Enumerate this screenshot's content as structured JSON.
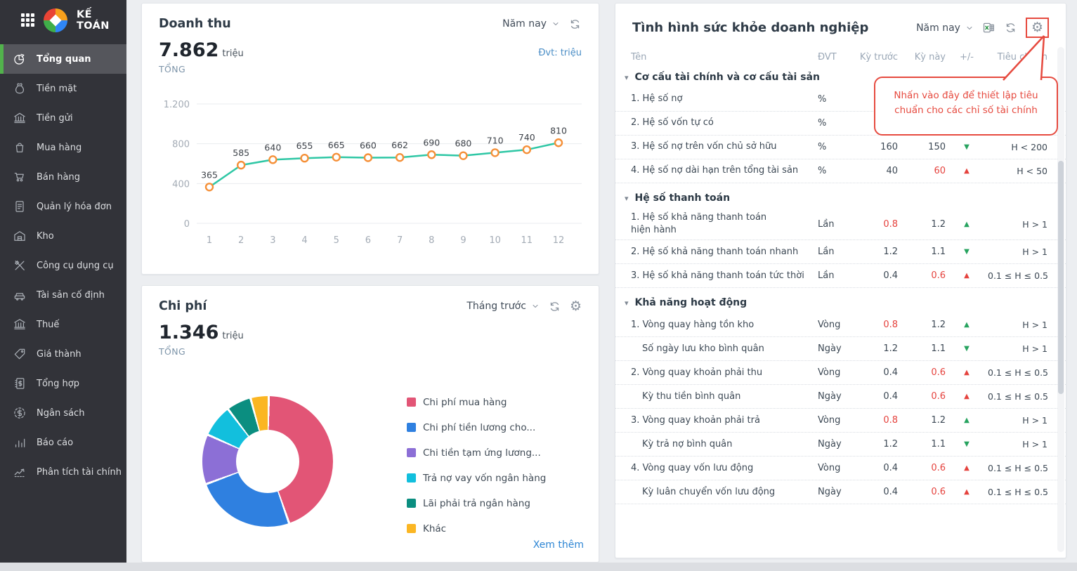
{
  "app": {
    "title": "KẾ TOÁN"
  },
  "colors": {
    "accent_green": "#52b24c",
    "line": "#2fc7a5",
    "marker": "#f59038",
    "negative": "#e5423d",
    "positive": "#27a35f",
    "annotation": "#e64a3f",
    "link": "#2e86d4"
  },
  "sidebar": {
    "items": [
      {
        "label": "Tổng quan",
        "icon": "overview-icon",
        "active": true
      },
      {
        "label": "Tiền mặt",
        "icon": "cash-icon",
        "active": false
      },
      {
        "label": "Tiền gửi",
        "icon": "bank-deposit-icon",
        "active": false
      },
      {
        "label": "Mua hàng",
        "icon": "purchase-icon",
        "active": false
      },
      {
        "label": "Bán hàng",
        "icon": "sales-cart-icon",
        "active": false
      },
      {
        "label": "Quản lý hóa đơn",
        "icon": "invoice-icon",
        "active": false
      },
      {
        "label": "Kho",
        "icon": "warehouse-icon",
        "active": false
      },
      {
        "label": "Công cụ dụng cụ",
        "icon": "tools-icon",
        "active": false
      },
      {
        "label": "Tài sản cố định",
        "icon": "fixed-asset-icon",
        "active": false
      },
      {
        "label": "Thuế",
        "icon": "tax-icon",
        "active": false
      },
      {
        "label": "Giá thành",
        "icon": "cost-tag-icon",
        "active": false
      },
      {
        "label": "Tổng hợp",
        "icon": "ledger-icon",
        "active": false
      },
      {
        "label": "Ngân sách",
        "icon": "budget-icon",
        "active": false
      },
      {
        "label": "Báo cáo",
        "icon": "report-icon",
        "active": false
      },
      {
        "label": "Phân tích tài chính",
        "icon": "analysis-icon",
        "active": false
      }
    ]
  },
  "revenue_card": {
    "title": "Doanh thu",
    "period": "Năm nay",
    "controls": [
      "refresh-icon"
    ],
    "total": "7.862",
    "total_unit": "triệu",
    "total_label": "TỔNG",
    "unit_note": "Đvt: triệu",
    "chart_data": {
      "type": "line",
      "categories": [
        "1",
        "2",
        "3",
        "4",
        "5",
        "6",
        "7",
        "8",
        "9",
        "10",
        "11",
        "12"
      ],
      "values": [
        365,
        585,
        640,
        655,
        665,
        660,
        662,
        690,
        680,
        710,
        740,
        810
      ],
      "ylim": [
        0,
        1200
      ],
      "yticks": [
        0,
        400,
        800,
        1200
      ],
      "ytick_labels": [
        "0",
        "400",
        "800",
        "1.200"
      ],
      "grid": true,
      "line_color": "#2fc7a5",
      "marker_color": "#f59038"
    }
  },
  "expense_card": {
    "title": "Chi phí",
    "period": "Tháng trước",
    "controls": [
      "refresh-icon",
      "gear-icon"
    ],
    "total": "1.346",
    "total_unit": "triệu",
    "total_label": "TỔNG",
    "see_more": "Xem thêm",
    "chart_data": {
      "type": "pie",
      "labels": [
        "Chi phí mua hàng",
        "Chi phí tiền lương cho...",
        "Chi tiền tạm ứng lương...",
        "Trả nợ vay vốn ngân hàng",
        "Lãi phải trả ngân hàng",
        "Khác"
      ],
      "values": [
        44.4,
        24.7,
        12.3,
        8.0,
        6.1,
        4.5
      ],
      "values_unit": "percent (estimated from donut angles)",
      "colors": [
        "#e25576",
        "#2f80e0",
        "#8c6fd6",
        "#12bfdd",
        "#0b8e80",
        "#fbb623"
      ],
      "legend_position": "right",
      "donut": true
    }
  },
  "health_panel": {
    "title": "Tình hình sức khỏe doanh nghiệp",
    "period": "Năm nay",
    "controls": [
      "excel-icon",
      "refresh-icon",
      "gear-icon"
    ],
    "gear_highlighted": true,
    "columns": [
      "Tên",
      "ĐVT",
      "Kỳ trước",
      "Kỳ này",
      "+/-",
      "Tiêu chuẩn"
    ],
    "sections": [
      {
        "title": "Cơ cấu tài chính và cơ cấu tài sản",
        "rows": [
          {
            "name": "1. Hệ số nợ",
            "unit": "%",
            "prev": "",
            "cur": "",
            "trend": "",
            "std": ""
          },
          {
            "name": "2. Hệ số vốn tự có",
            "unit": "%",
            "prev": "",
            "cur": "",
            "trend": "",
            "std": ""
          },
          {
            "name": "3. Hệ số nợ trên vốn chủ sở hữu",
            "unit": "%",
            "prev": "160",
            "cur": "150",
            "trend": "down-green",
            "std": "H < 200"
          },
          {
            "name": "4. Hệ số nợ dài hạn trên tổng tài sản",
            "unit": "%",
            "prev": "40",
            "cur": "60",
            "cur_alert": true,
            "trend": "up-red",
            "std": "H < 50"
          }
        ]
      },
      {
        "title": "Hệ số thanh toán",
        "rows": [
          {
            "name": "1. Hệ số khả năng thanh toán hiện hành",
            "tall": true,
            "unit": "Lần",
            "prev": "0.8",
            "prev_alert": true,
            "cur": "1.2",
            "trend": "up-green",
            "std": "H > 1"
          },
          {
            "name": "2. Hệ số khả năng thanh toán nhanh",
            "unit": "Lần",
            "prev": "1.2",
            "cur": "1.1",
            "trend": "down-green",
            "std": "H > 1"
          },
          {
            "name": "3. Hệ số khả năng thanh toán tức thời",
            "unit": "Lần",
            "prev": "0.4",
            "cur": "0.6",
            "cur_alert": true,
            "trend": "up-red",
            "std": "0.1 ≤ H ≤ 0.5"
          }
        ]
      },
      {
        "title": "Khả năng hoạt động",
        "rows": [
          {
            "name": "1. Vòng quay hàng tồn kho",
            "unit": "Vòng",
            "prev": "0.8",
            "prev_alert": true,
            "cur": "1.2",
            "trend": "up-green",
            "std": "H > 1"
          },
          {
            "name": "Số ngày lưu kho bình quân",
            "sub": true,
            "unit": "Ngày",
            "prev": "1.2",
            "cur": "1.1",
            "trend": "down-green",
            "std": "H > 1"
          },
          {
            "name": "2. Vòng quay khoản phải thu",
            "unit": "Vòng",
            "prev": "0.4",
            "cur": "0.6",
            "cur_alert": true,
            "trend": "up-red",
            "std": "0.1 ≤ H ≤ 0.5"
          },
          {
            "name": "Kỳ thu tiền bình quân",
            "sub": true,
            "unit": "Ngày",
            "prev": "0.4",
            "cur": "0.6",
            "cur_alert": true,
            "trend": "up-red",
            "std": "0.1 ≤ H ≤ 0.5"
          },
          {
            "name": "3. Vòng quay khoản phải trả",
            "unit": "Vòng",
            "prev": "0.8",
            "prev_alert": true,
            "cur": "1.2",
            "trend": "up-green",
            "std": "H > 1"
          },
          {
            "name": "Kỳ trả nợ bình quân",
            "sub": true,
            "unit": "Ngày",
            "prev": "1.2",
            "cur": "1.1",
            "trend": "down-green",
            "std": "H > 1"
          },
          {
            "name": "4. Vòng quay vốn lưu động",
            "unit": "Vòng",
            "prev": "0.4",
            "cur": "0.6",
            "cur_alert": true,
            "trend": "up-red",
            "std": "0.1 ≤ H ≤ 0.5"
          },
          {
            "name": "Kỳ luân chuyển vốn lưu động",
            "sub": true,
            "unit": "Ngày",
            "prev": "0.4",
            "cur": "0.6",
            "cur_alert": true,
            "trend": "up-red",
            "std": "0.1 ≤ H ≤ 0.5"
          }
        ]
      }
    ],
    "callout": {
      "text": "Nhấn vào đây để thiết lập tiêu chuẩn cho các chỉ số tài chính"
    }
  }
}
